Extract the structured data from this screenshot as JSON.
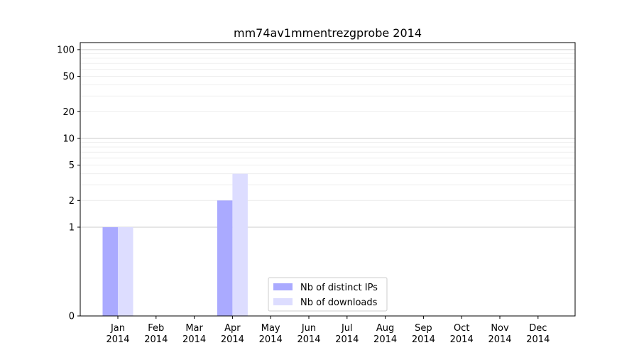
{
  "chart_data": {
    "type": "bar",
    "title": "mm74av1mmentrezgprobe 2014",
    "xlabel": "",
    "ylabel": "",
    "yscale": "symlog",
    "ylim": [
      0,
      120
    ],
    "yticks": [
      0,
      1,
      2,
      5,
      10,
      20,
      50,
      100
    ],
    "grid": true,
    "legend_position": "bottom-center",
    "categories": [
      [
        "Jan",
        "2014"
      ],
      [
        "Feb",
        "2014"
      ],
      [
        "Mar",
        "2014"
      ],
      [
        "Apr",
        "2014"
      ],
      [
        "May",
        "2014"
      ],
      [
        "Jun",
        "2014"
      ],
      [
        "Jul",
        "2014"
      ],
      [
        "Aug",
        "2014"
      ],
      [
        "Sep",
        "2014"
      ],
      [
        "Oct",
        "2014"
      ],
      [
        "Nov",
        "2014"
      ],
      [
        "Dec",
        "2014"
      ]
    ],
    "series": [
      {
        "name": "Nb of distinct IPs",
        "color": "#aaaaff",
        "values": [
          1,
          0,
          0,
          2,
          0,
          0,
          0,
          0,
          0,
          0,
          0,
          0
        ]
      },
      {
        "name": "Nb of downloads",
        "color": "#ddddff",
        "values": [
          1,
          0,
          0,
          4,
          0,
          0,
          0,
          0,
          0,
          0,
          0,
          0
        ]
      }
    ]
  }
}
